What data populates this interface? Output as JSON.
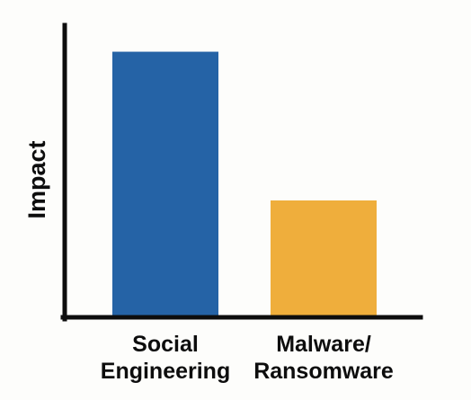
{
  "chart_data": {
    "type": "bar",
    "title": "",
    "xlabel": "",
    "ylabel": "Impact",
    "categories": [
      [
        "Social",
        "Engineering"
      ],
      [
        "Malware/",
        "Ransomware"
      ]
    ],
    "values": [
      1.0,
      0.44
    ],
    "ylim": [
      0,
      1.1
    ],
    "grid": false,
    "colors": [
      "#2563a6",
      "#efae3c"
    ],
    "axis_color": "#0d0d0d"
  }
}
